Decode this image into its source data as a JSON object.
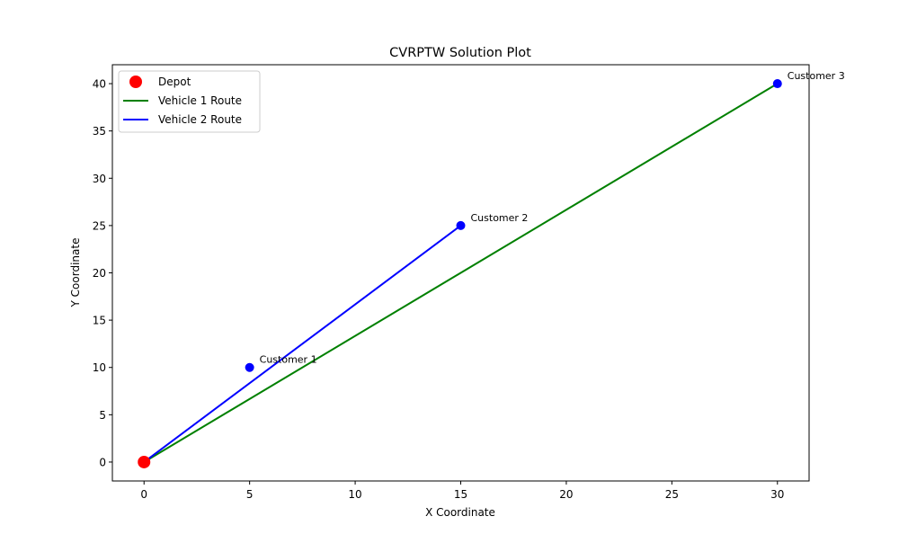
{
  "chart_data": {
    "type": "scatter",
    "title": "CVRPTW Solution Plot",
    "xlabel": "X Coordinate",
    "ylabel": "Y Coordinate",
    "xlim": [
      -1.5,
      31.5
    ],
    "ylim": [
      -2,
      42
    ],
    "xticks": [
      0,
      5,
      10,
      15,
      20,
      25,
      30
    ],
    "yticks": [
      0,
      5,
      10,
      15,
      20,
      25,
      30,
      35,
      40
    ],
    "grid": false,
    "legend_position": "upper-left",
    "depot": {
      "name": "Depot",
      "x": 0,
      "y": 0,
      "color": "#ff0000"
    },
    "customers": [
      {
        "label": "Customer 1",
        "x": 5,
        "y": 10,
        "color": "#0000ff"
      },
      {
        "label": "Customer 2",
        "x": 15,
        "y": 25,
        "color": "#0000ff"
      },
      {
        "label": "Customer 3",
        "x": 30,
        "y": 40,
        "color": "#0000ff"
      }
    ],
    "series": [
      {
        "name": "Vehicle 1 Route",
        "color": "#008000",
        "x": [
          0,
          30,
          0
        ],
        "y": [
          0,
          40,
          0
        ]
      },
      {
        "name": "Vehicle 2 Route",
        "color": "#0000ff",
        "x": [
          0,
          15,
          0
        ],
        "y": [
          0,
          25,
          0
        ]
      }
    ]
  }
}
